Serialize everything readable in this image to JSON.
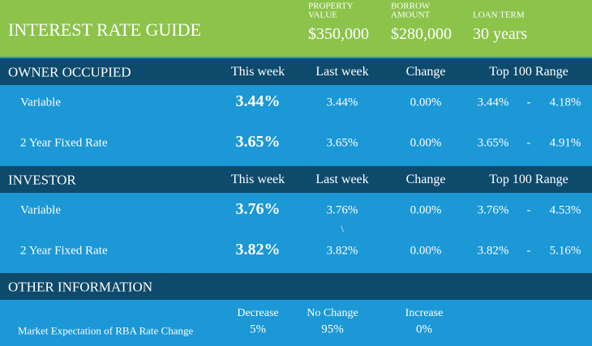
{
  "header": {
    "title": "INTEREST RATE GUIDE",
    "property_value": {
      "label": [
        "PROPERTY",
        "VALUE"
      ],
      "value": "$350,000"
    },
    "borrow_amount": {
      "label": [
        "BORROW",
        "AMOUNT"
      ],
      "value": "$280,000"
    },
    "loan_term": {
      "label": [
        "LOAN TERM"
      ],
      "value": "30 years"
    }
  },
  "sections": [
    {
      "title": "OWNER OCCUPIED",
      "columns": [
        "This week",
        "Last week",
        "Change",
        "Top 100 Range"
      ],
      "rows": [
        {
          "label": "Variable",
          "this_week": "3.44%",
          "last_week": "3.44%",
          "change": "0.00%",
          "range": [
            "3.44%",
            "-",
            "4.18%"
          ]
        },
        {
          "label": "2 Year Fixed Rate",
          "this_week": "3.65%",
          "last_week": "3.65%",
          "change": "0.00%",
          "range": [
            "3.65%",
            "-",
            "4.91%"
          ]
        }
      ]
    },
    {
      "title": "INVESTOR",
      "columns": [
        "This week",
        "Last week",
        "Change",
        "Top 100 Range"
      ],
      "rows": [
        {
          "label": "Variable",
          "this_week": "3.76%",
          "last_week": "3.76%",
          "note": "\\",
          "change": "0.00%",
          "range": [
            "3.76%",
            "-",
            "4.53%"
          ]
        },
        {
          "label": "2 Year Fixed Rate",
          "this_week": "3.82%",
          "last_week": "3.82%",
          "change": "0.00%",
          "range": [
            "3.82%",
            "-",
            "5.16%"
          ]
        }
      ]
    }
  ],
  "other": {
    "title": "OTHER INFORMATION",
    "columns": [
      "Decrease",
      "No Change",
      "Increase"
    ],
    "label": "Market Expectation of RBA Rate Change",
    "values": [
      "5%",
      "95%",
      "0%"
    ]
  }
}
